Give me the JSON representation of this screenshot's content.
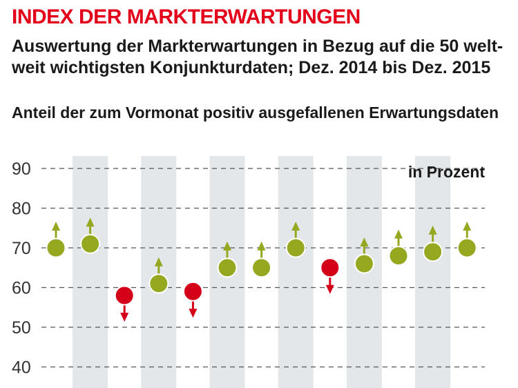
{
  "header": {
    "title": "INDEX DER MARKTERWARTUNGEN",
    "subtitle_line1": "Auswertung der Markterwartungen in Bezug auf die 50 welt-",
    "subtitle_line2": "weit wichtigsten Konjunkturdaten; Dez. 2014 bis Dez. 2015"
  },
  "chart_data": {
    "type": "scatter",
    "ylabel": "Anteil der zum Vormonat positiv ausgefallenen Erwartungsdaten",
    "unit": "in Prozent",
    "ylim": [
      40,
      90
    ],
    "yticks": [
      90,
      80,
      70,
      60,
      50,
      40
    ],
    "grid": true,
    "values": [
      70,
      71,
      58,
      61,
      59,
      65,
      65,
      70,
      65,
      66,
      68,
      69,
      70
    ],
    "direction": [
      "up",
      "up",
      "down",
      "up",
      "down",
      "up",
      "up",
      "up",
      "down",
      "up",
      "up",
      "up",
      "up"
    ],
    "colors": {
      "up": "#95a81f",
      "down": "#d4001a",
      "band": "#e3e7ea",
      "grid": "#555555"
    }
  }
}
